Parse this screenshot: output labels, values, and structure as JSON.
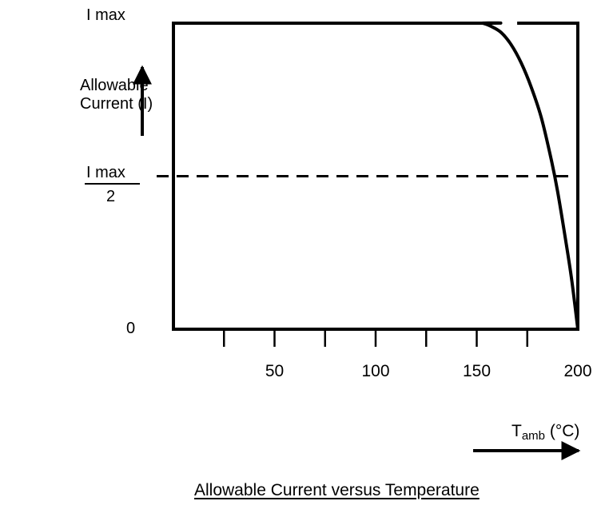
{
  "chart_data": {
    "type": "line",
    "title": "Allowable Current  versus Temperature",
    "xlabel": {
      "main": "T",
      "sub": "amb",
      "unit": "(°C)"
    },
    "ylabel": [
      "Allowable",
      "Current (I)"
    ],
    "xlim": [
      0,
      200
    ],
    "ylim": [
      0,
      1
    ],
    "x_ticks": [
      25,
      50,
      75,
      100,
      125,
      150,
      175,
      200
    ],
    "x_tick_labels": [
      {
        "value": 50,
        "text": "50"
      },
      {
        "value": 100,
        "text": "100"
      },
      {
        "value": 150,
        "text": "150"
      },
      {
        "value": 200,
        "text": "200"
      }
    ],
    "y_tick_labels": [
      {
        "value": 1,
        "text": "I max"
      },
      {
        "value": 0.5,
        "numerator": "I max",
        "denominator": "2"
      },
      {
        "value": 0,
        "text": "0"
      }
    ],
    "reference_lines": [
      {
        "axis": "y",
        "value": 0.5,
        "style": "dashed"
      }
    ],
    "series": [
      {
        "x": [
          0,
          150,
          153,
          157,
          162,
          167,
          172,
          177,
          182,
          187,
          190,
          194,
          197,
          200
        ],
        "y": [
          1,
          1,
          1,
          0.99,
          0.97,
          0.93,
          0.87,
          0.79,
          0.69,
          0.55,
          0.45,
          0.29,
          0.16,
          0
        ]
      }
    ],
    "grid": false
  }
}
